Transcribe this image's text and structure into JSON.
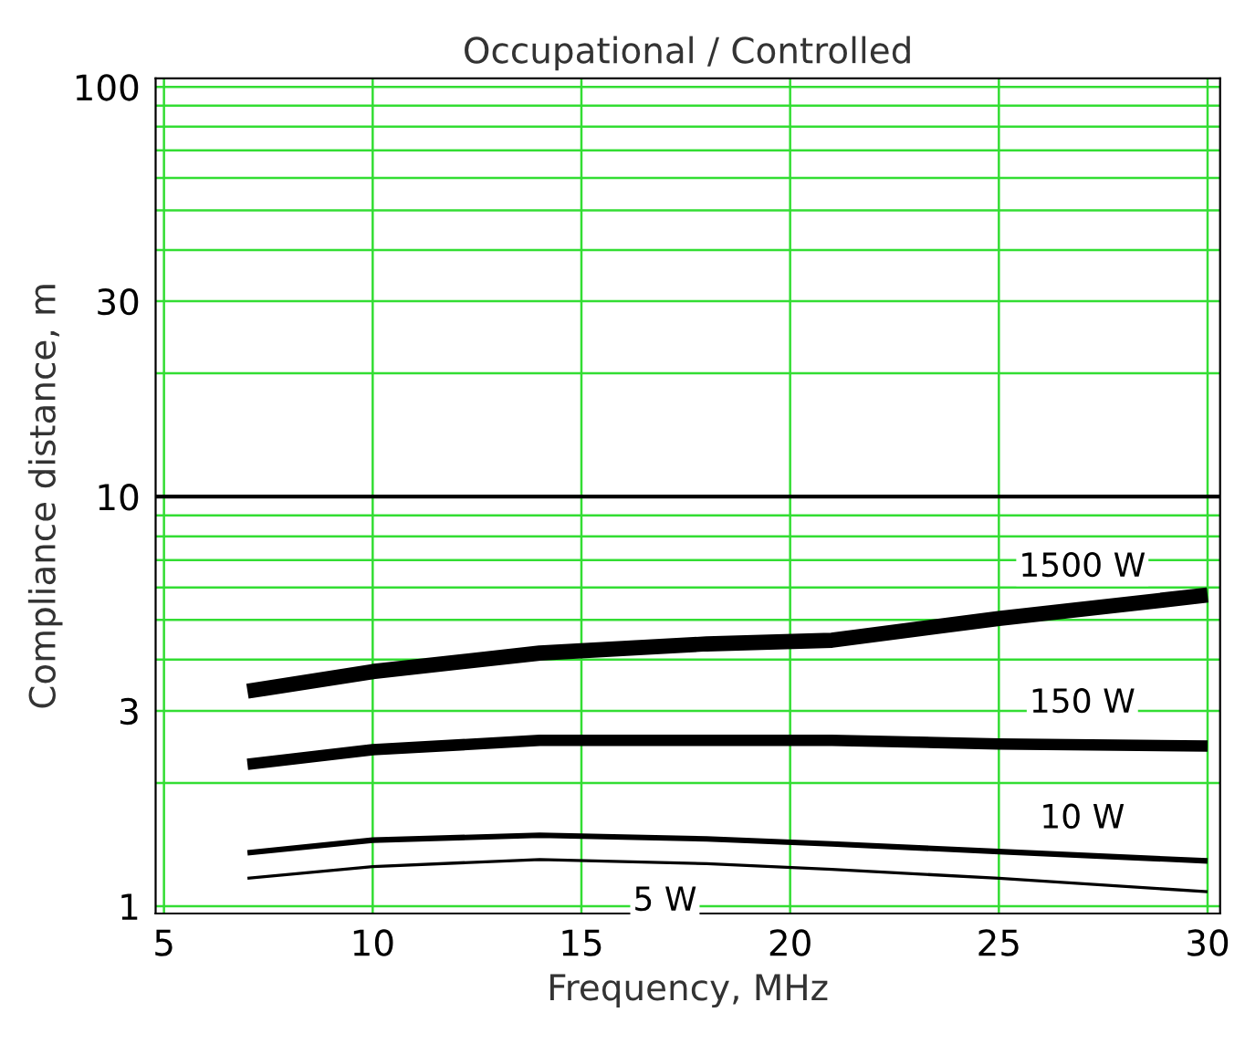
{
  "chart_data": {
    "type": "line",
    "title": "Occupational / Controlled",
    "xlabel": "Frequency, MHz",
    "ylabel": "Compliance distance, m",
    "x": [
      7,
      10,
      14,
      18,
      21,
      25,
      30
    ],
    "series": [
      {
        "name": "1500 W",
        "color": "#000000",
        "values": [
          3.35,
          3.74,
          4.15,
          4.37,
          4.46,
          5.04,
          5.75
        ]
      },
      {
        "name": "150 W",
        "color": "#000000",
        "values": [
          2.22,
          2.41,
          2.54,
          2.54,
          2.54,
          2.49,
          2.46
        ]
      },
      {
        "name": "10 W",
        "color": "#000000",
        "values": [
          1.35,
          1.45,
          1.49,
          1.46,
          1.42,
          1.36,
          1.29
        ]
      },
      {
        "name": "5 W",
        "color": "#000000",
        "values": [
          1.17,
          1.25,
          1.3,
          1.27,
          1.23,
          1.17,
          1.085
        ]
      }
    ],
    "log": "y",
    "xlim": [
      4.8,
      30.3
    ],
    "xticks": [
      5,
      10,
      15,
      20,
      25,
      30
    ],
    "ylim": [
      0.96,
      105
    ],
    "yticks": [
      1,
      3,
      10,
      30,
      100
    ],
    "ref_lines": [
      {
        "axis": "y",
        "value": 10,
        "color": "#000000"
      }
    ],
    "grid": true,
    "legend": false,
    "marker": "none",
    "line_style": "solid"
  }
}
